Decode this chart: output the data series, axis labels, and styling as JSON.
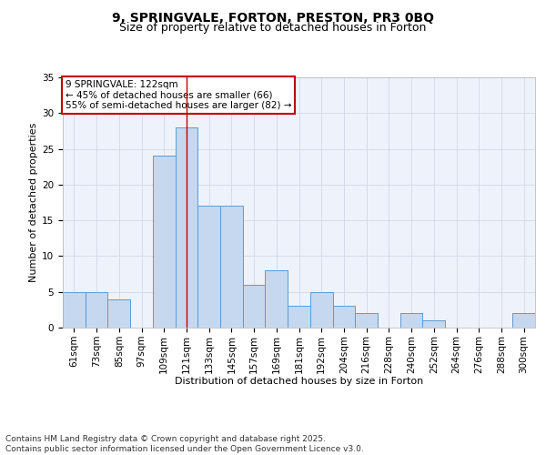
{
  "title_line1": "9, SPRINGVALE, FORTON, PRESTON, PR3 0BQ",
  "title_line2": "Size of property relative to detached houses in Forton",
  "xlabel": "Distribution of detached houses by size in Forton",
  "ylabel": "Number of detached properties",
  "categories": [
    "61sqm",
    "73sqm",
    "85sqm",
    "97sqm",
    "109sqm",
    "121sqm",
    "133sqm",
    "145sqm",
    "157sqm",
    "169sqm",
    "181sqm",
    "192sqm",
    "204sqm",
    "216sqm",
    "228sqm",
    "240sqm",
    "252sqm",
    "264sqm",
    "276sqm",
    "288sqm",
    "300sqm"
  ],
  "values": [
    5,
    5,
    4,
    0,
    24,
    28,
    17,
    17,
    6,
    8,
    3,
    5,
    3,
    2,
    0,
    2,
    1,
    0,
    0,
    0,
    2
  ],
  "bar_color": "#c5d8f0",
  "bar_edge_color": "#5b9bd5",
  "highlight_index": 5,
  "highlight_line_color": "#c00000",
  "ylim": [
    0,
    35
  ],
  "yticks": [
    0,
    5,
    10,
    15,
    20,
    25,
    30,
    35
  ],
  "grid_color": "#d0d8e8",
  "background_color": "#eef3fb",
  "annotation_box_text": "9 SPRINGVALE: 122sqm\n← 45% of detached houses are smaller (66)\n55% of semi-detached houses are larger (82) →",
  "annotation_box_edge_color": "#c00000",
  "footer_text": "Contains HM Land Registry data © Crown copyright and database right 2025.\nContains public sector information licensed under the Open Government Licence v3.0.",
  "title_fontsize": 10,
  "subtitle_fontsize": 9,
  "axis_label_fontsize": 8,
  "tick_fontsize": 7.5,
  "annotation_fontsize": 7.5,
  "footer_fontsize": 6.5
}
